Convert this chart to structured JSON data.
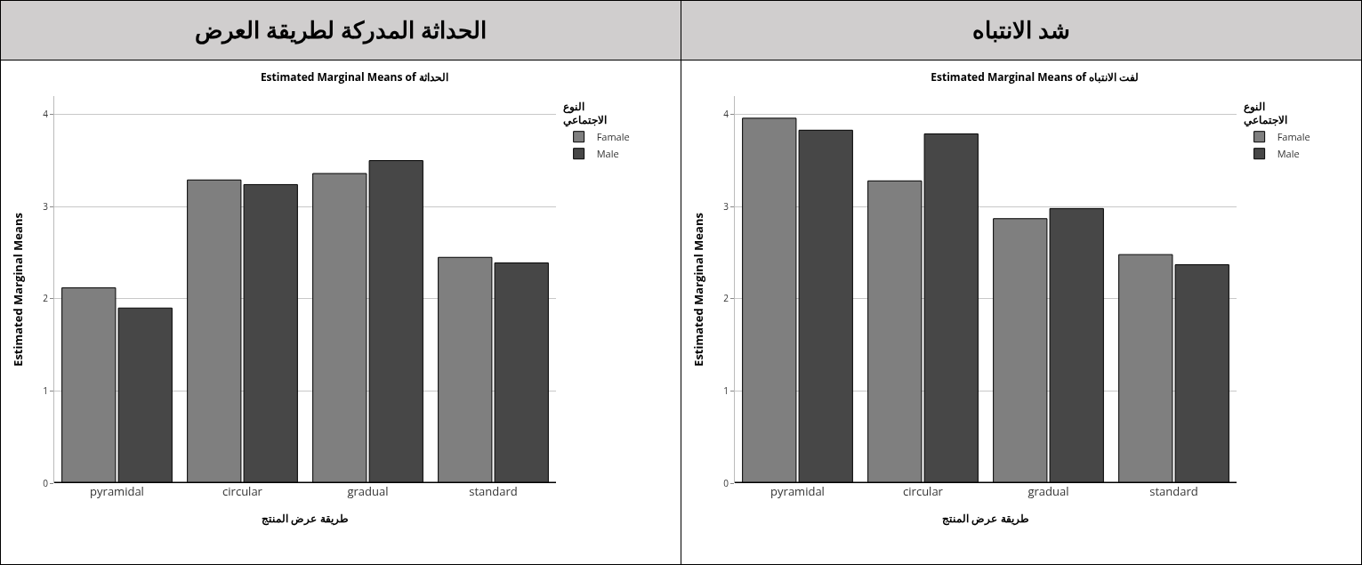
{
  "chart_data": [
    {
      "type": "bar",
      "annotations": [
        "الحداثة المدركة لطريقة العرض"
      ],
      "title": "Estimated Marginal Means of الحداثة",
      "xlabel": "طريقة عرض المنتج",
      "ylabel": "Estimated Marginal Means",
      "legend_title": "النوع\nالاجتماعي",
      "categories": [
        "pyramidal",
        "circular",
        "gradual",
        "standard"
      ],
      "series": [
        {
          "name": "Famale",
          "color": "#7f7f7f",
          "values": [
            2.12,
            3.29,
            3.36,
            2.45
          ]
        },
        {
          "name": "Male",
          "color": "#474747",
          "values": [
            1.9,
            3.24,
            3.5,
            2.39
          ]
        }
      ],
      "ylim": [
        0,
        4.2
      ],
      "yticks": [
        0,
        1,
        2,
        3,
        4
      ],
      "grid": "y",
      "legend": "top right"
    },
    {
      "type": "bar",
      "annotations": [
        "شد الانتباه"
      ],
      "title": "Estimated Marginal Means of لفت الانتباه",
      "xlabel": "طريقة عرض المنتج",
      "ylabel": "Estimated Marginal Means",
      "legend_title": "النوع\nالاجتماعي",
      "categories": [
        "pyramidal",
        "circular",
        "gradual",
        "standard"
      ],
      "series": [
        {
          "name": "Famale",
          "color": "#7f7f7f",
          "values": [
            3.96,
            3.28,
            2.87,
            2.48
          ]
        },
        {
          "name": "Male",
          "color": "#474747",
          "values": [
            3.83,
            3.79,
            2.98,
            2.37
          ]
        }
      ],
      "ylim": [
        0,
        4.2
      ],
      "yticks": [
        0,
        1,
        2,
        3,
        4
      ],
      "grid": "y",
      "legend": "top right"
    }
  ]
}
